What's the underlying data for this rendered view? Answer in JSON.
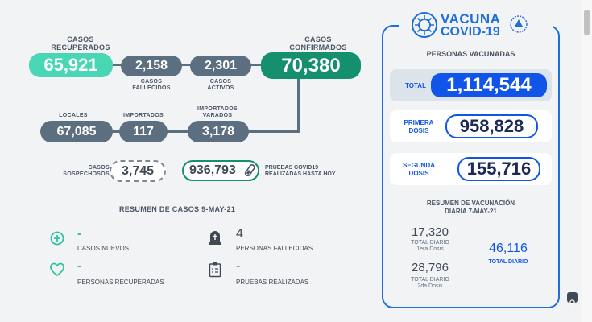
{
  "stats": {
    "recuperados": {
      "label_1": "CASOS",
      "label_2": "RECUPERADOS",
      "value": "65,921"
    },
    "fallecidos": {
      "value": "2,158",
      "label_1": "CASOS",
      "label_2": "FALLECIDOS"
    },
    "activos": {
      "value": "2,301",
      "label_1": "CASOS",
      "label_2": "ACTIVOS"
    },
    "confirmados": {
      "label_1": "CASOS",
      "label_2": "CONFIRMADOS",
      "value": "70,380"
    },
    "locales": {
      "label": "LOCALES",
      "value": "67,085"
    },
    "importados": {
      "label": "IMPORTADOS",
      "value": "117"
    },
    "varados": {
      "label_1": "IMPORTADOS",
      "label_2": "VARADOS",
      "value": "3,178"
    },
    "sospechosos": {
      "label_1": "CASOS",
      "label_2": "SOSPECHOSOS",
      "value": "3,745"
    },
    "pruebas": {
      "value": "936,793",
      "label_1": "PRUEBAS COVID19",
      "label_2": "REALIZADAS HASTA HOY"
    }
  },
  "resumen": {
    "title": "RESUMEN DE CASOS 9-MAY-21",
    "items": [
      {
        "value": "-",
        "label": "CASOS NUEVOS",
        "icon": "plus-circle-icon"
      },
      {
        "value": "4",
        "label": "PERSONAS FALLECIDAS",
        "icon": "tombstone-icon"
      },
      {
        "value": "-",
        "label": "PERSONAS RECUPERADAS",
        "icon": "heart-icon"
      },
      {
        "value": "-",
        "label": "PRUEBAS REALIZADAS",
        "icon": "clipboard-icon"
      }
    ]
  },
  "vacuna": {
    "logo_line1": "VACUNA",
    "logo_line2": "COVID-19",
    "title": "PERSONAS VACUNADAS",
    "total_label": "TOTAL",
    "total_value": "1,114,544",
    "primera_label_1": "PRIMERA",
    "primera_label_2": "DOSIS",
    "primera_value": "958,828",
    "segunda_label_1": "SEGUNDA",
    "segunda_label_2": "DOSIS",
    "segunda_value": "155,716",
    "resumen_title_1": "RESUMEN DE VACUNACIÓN",
    "resumen_title_2": "DIARIA 7-MAY-21",
    "d1_value": "17,320",
    "d1_label_1": "TOTAL DIARIO",
    "d1_label_2": "1era Dosis",
    "d2_value": "28,796",
    "d2_label_1": "TOTAL DIARIO",
    "d2_label_2": "2da Dosis",
    "total_diario_value": "46,116",
    "total_diario_label": "TOTAL DIARIO"
  },
  "colors": {
    "teal": "#49d6b4",
    "green": "#14906f",
    "gray": "#5c6f80",
    "blue": "#1155e8"
  }
}
